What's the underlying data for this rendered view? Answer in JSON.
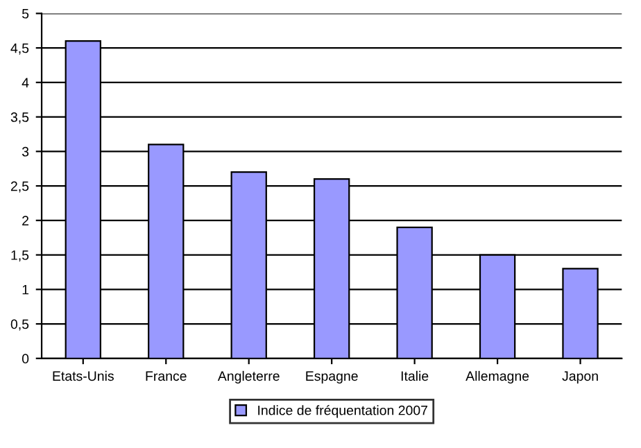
{
  "chart_data": {
    "type": "bar",
    "categories": [
      "Etats-Unis",
      "France",
      "Angleterre",
      "Espagne",
      "Italie",
      "Allemagne",
      "Japon"
    ],
    "series": [
      {
        "name": "Indice de fréquentation 2007",
        "color": "#9999ff",
        "values": [
          4.6,
          3.1,
          2.7,
          2.6,
          1.9,
          1.5,
          1.3
        ]
      }
    ],
    "ylim": [
      0,
      5
    ],
    "yticks": [
      0,
      {
        "value": 0.5,
        "label": "0,5"
      },
      1,
      {
        "value": 1.5,
        "label": "1,5"
      },
      2,
      {
        "value": 2.5,
        "label": "2,5"
      },
      3,
      {
        "value": 3.5,
        "label": "3,5"
      },
      4,
      {
        "value": 4.5,
        "label": "4,5"
      },
      5
    ],
    "grid": "y",
    "legend": "bottom"
  }
}
